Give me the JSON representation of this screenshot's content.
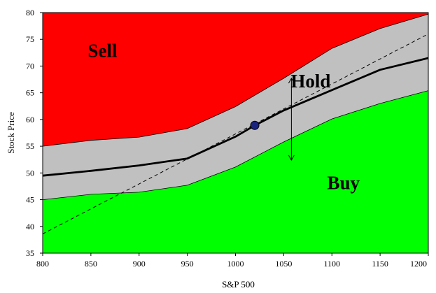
{
  "chart_data": {
    "type": "area",
    "title": "",
    "xlabel": "S&P 500",
    "ylabel": "Stock Price",
    "xlim": [
      800,
      1200
    ],
    "ylim": [
      35,
      80
    ],
    "xticks": [
      800,
      850,
      900,
      950,
      1000,
      1050,
      1100,
      1150,
      1200
    ],
    "yticks": [
      35,
      40,
      45,
      50,
      55,
      60,
      65,
      70,
      75,
      80
    ],
    "grid": false,
    "legend": "none",
    "regions": [
      {
        "name": "Sell",
        "color": "#ff0000"
      },
      {
        "name": "Hold",
        "color": "#c0c0c0"
      },
      {
        "name": "Buy",
        "color": "#00ff00"
      }
    ],
    "series": [
      {
        "name": "upper band",
        "color": "#000000",
        "x": [
          800,
          850,
          900,
          950,
          1000,
          1050,
          1100,
          1150,
          1200
        ],
        "y": [
          55.0,
          56.1,
          56.7,
          58.3,
          62.4,
          67.7,
          73.3,
          77.0,
          79.7
        ]
      },
      {
        "name": "lower band",
        "color": "#000000",
        "x": [
          800,
          850,
          900,
          950,
          1000,
          1050,
          1100,
          1150,
          1200
        ],
        "y": [
          45.0,
          46.0,
          46.4,
          47.7,
          51.1,
          55.8,
          60.1,
          63.0,
          65.4
        ]
      },
      {
        "name": "center line",
        "color": "#000000",
        "x": [
          800,
          850,
          900,
          950,
          1000,
          1020,
          1050,
          1100,
          1150,
          1200
        ],
        "y": [
          49.5,
          50.4,
          51.4,
          52.7,
          56.8,
          58.9,
          61.7,
          65.5,
          69.3,
          71.5
        ]
      },
      {
        "name": "dashed line",
        "color": "#000000",
        "x": [
          800,
          1200
        ],
        "y": [
          38.6,
          76.0
        ]
      }
    ],
    "point": {
      "x": 1020,
      "y": 58.9,
      "color": "#1a237e"
    },
    "arrow": {
      "x": 1058,
      "y1": 52.4,
      "y2": 67.7
    },
    "labels": [
      {
        "text": "Sell",
        "x": 862,
        "y": 71.7
      },
      {
        "text": "Hold",
        "x": 1078,
        "y": 66.0
      },
      {
        "text": "Buy",
        "x": 1112,
        "y": 47.0
      }
    ]
  }
}
